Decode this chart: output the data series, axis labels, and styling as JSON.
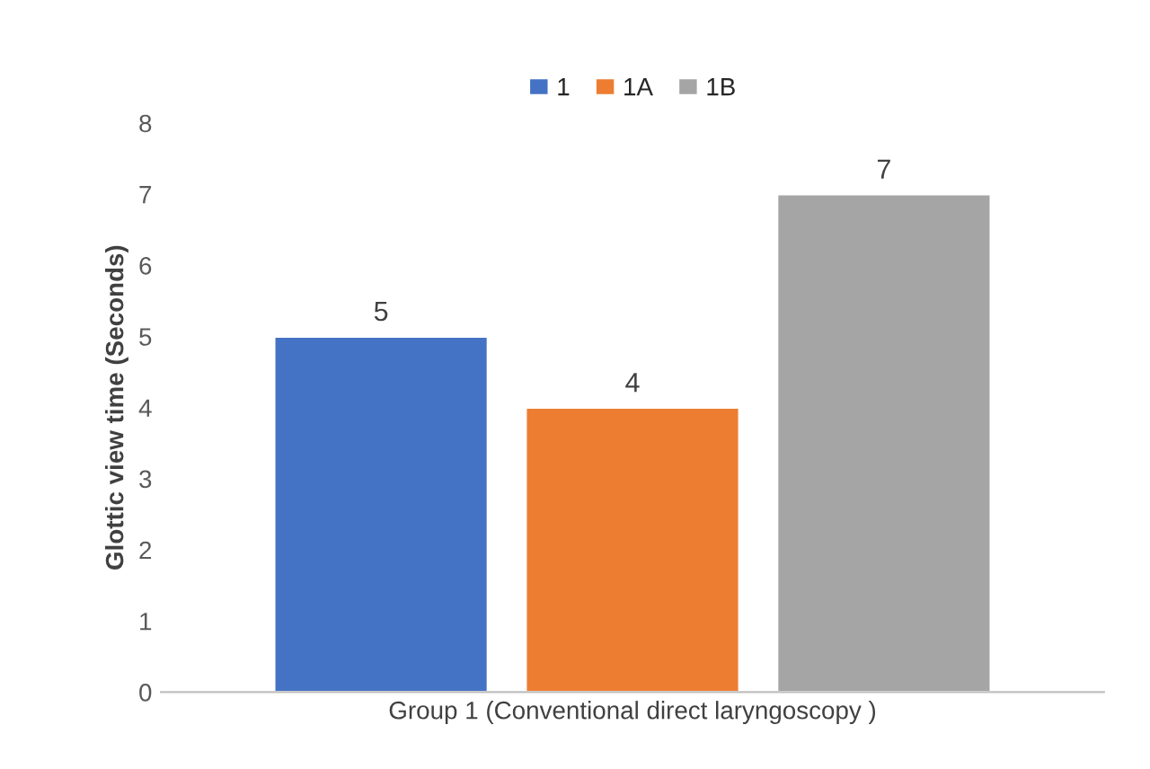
{
  "chart_data": {
    "type": "bar",
    "categories": [
      "Group 1 (Conventional direct laryngoscopy )"
    ],
    "series": [
      {
        "name": "1",
        "color": "#4472c4",
        "values": [
          5
        ]
      },
      {
        "name": "1A",
        "color": "#ed7d31",
        "values": [
          4
        ]
      },
      {
        "name": "1B",
        "color": "#a5a5a5",
        "values": [
          7
        ]
      }
    ],
    "ylabel": "Glottic view time (Seconds)",
    "ylim": [
      0,
      8
    ],
    "yticks": [
      0,
      1,
      2,
      3,
      4,
      5,
      6,
      7,
      8
    ],
    "data_labels": true,
    "legend": "top",
    "grid": false
  }
}
